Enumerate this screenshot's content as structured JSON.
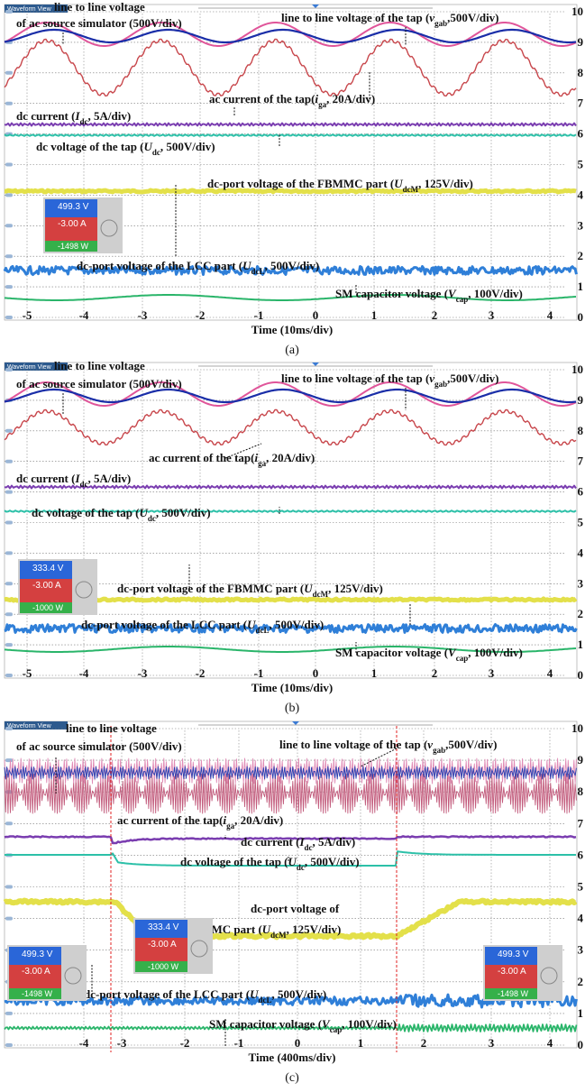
{
  "panels": [
    {
      "header": "Waveform View",
      "y_labels": [
        10,
        9,
        8,
        7,
        6,
        5,
        4,
        3,
        2,
        1,
        0
      ],
      "x_labels": [
        -5,
        -4,
        -3,
        -2,
        -1,
        0,
        1,
        2,
        3,
        4
      ],
      "annotations": [
        [
          "line to line voltage"
        ],
        [
          "of ac source simulator (500V/div)"
        ],
        [
          "line to line voltage of the tap (",
          "v",
          "gab",
          ",500V/div)"
        ],
        [
          "ac current of the tap(",
          "i",
          "ga",
          ", 20A/div)"
        ],
        [
          "dc current (",
          "I",
          "dc",
          ", 5A/div)"
        ],
        [
          "dc voltage of the tap (",
          "U",
          "dc",
          ", 500V/div)"
        ],
        [
          "dc-port voltage of the FBMMC part  (",
          "U",
          "dcM",
          ", 125V/div)"
        ],
        [
          "dc-port voltage of the LCC part  (",
          "U",
          "dcL",
          ", 500V/div)"
        ],
        [
          "SM capacitor voltage (",
          "V",
          "cap",
          ", 100V/div)"
        ]
      ],
      "insets": [
        [
          "499.3 V",
          "-3.00 A",
          "-1498 W"
        ]
      ],
      "time": "Time (10ms/div)",
      "caption": "(a)"
    },
    {
      "header": "Waveform View",
      "y_labels": [
        10,
        9,
        8,
        7,
        6,
        5,
        4,
        3,
        2,
        1,
        0
      ],
      "x_labels": [
        -5,
        -4,
        -3,
        -2,
        -1,
        0,
        1,
        2,
        3,
        4
      ],
      "annotations": [
        [
          "line to line voltage"
        ],
        [
          "of ac source simulator (500V/div)"
        ],
        [
          "line to line voltage of the tap (",
          "v",
          "gab",
          ",500V/div)"
        ],
        [
          "ac current of the tap(",
          "i",
          "ga",
          ", 20A/div)"
        ],
        [
          "dc current (",
          "I",
          "dc",
          ", 5A/div)"
        ],
        [
          "dc voltage of the tap (",
          "U",
          "dc",
          ", 500V/div)"
        ],
        [
          "dc-port voltage of the FBMMC part  (",
          "U",
          "dcM",
          ", 125V/div)"
        ],
        [
          "dc-port voltage of the LCC part  (",
          "U",
          "dcL",
          ", 500V/div)"
        ],
        [
          "SM capacitor voltage (",
          "V",
          "cap",
          ", 100V/div)"
        ]
      ],
      "insets": [
        [
          "333.4 V",
          "-3.00 A",
          "-1000 W"
        ]
      ],
      "time": "Time (10ms/div)",
      "caption": "(b)"
    },
    {
      "header": "Waveform View",
      "y_labels": [
        10,
        9,
        8,
        7,
        6,
        5,
        4,
        3,
        2,
        1,
        0
      ],
      "x_labels": [
        -4,
        -3,
        -2,
        -1,
        0,
        1,
        2,
        3,
        4
      ],
      "annotations": [
        [
          "line to line voltage"
        ],
        [
          "of ac source simulator (500V/div)"
        ],
        [
          "line to line voltage of the tap (",
          "v",
          "gab",
          ",500V/div)"
        ],
        [
          "ac current of the tap(",
          "i",
          "ga",
          ", 20A/div)"
        ],
        [
          "dc current (",
          "I",
          "dc",
          ", 5A/div)"
        ],
        [
          "dc voltage of the tap (",
          "U",
          "dc",
          ", 500V/div)"
        ],
        [
          "dc-port voltage of"
        ],
        [
          "the FBMMC part  (",
          "U",
          "dcM",
          ", 125V/div)"
        ],
        [
          "dc-port voltage of the LCC part  (",
          "U",
          "dcL",
          ", 500V/div)"
        ],
        [
          "SM capacitor voltage (",
          "V",
          "cap",
          ", 100V/div)"
        ]
      ],
      "insets": [
        [
          "499.3 V",
          "-3.00 A",
          "-1498 W"
        ],
        [
          "333.4 V",
          "-3.00 A",
          "-1000 W"
        ],
        [
          "499.3 V",
          "-3.00 A",
          "-1498 W"
        ]
      ],
      "time": "Time (400ms/div)",
      "caption": "(c)"
    }
  ]
}
